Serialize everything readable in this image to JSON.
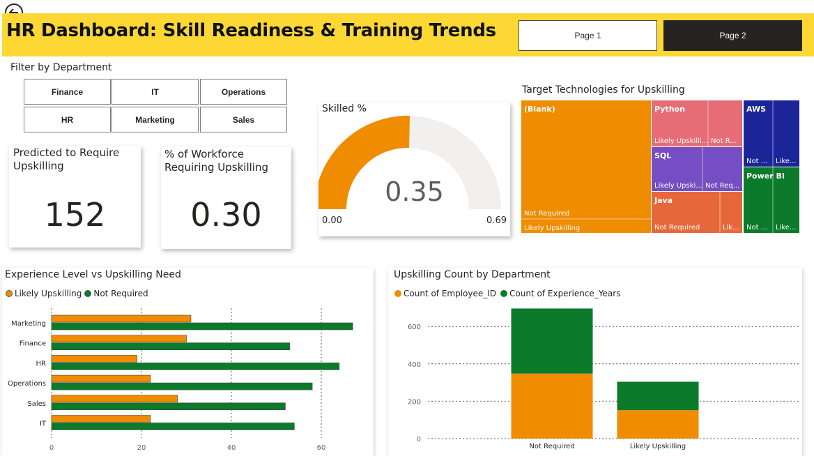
{
  "header": {
    "title": "HR Dashboard: Skill Readiness & Training Trends",
    "page_buttons": [
      "Page 1",
      "Page 2"
    ],
    "background": "#fdd835"
  },
  "filter": {
    "label": "Filter by Department",
    "options": [
      "Finance",
      "IT",
      "Operations",
      "HR",
      "Marketing",
      "Sales"
    ]
  },
  "cards": {
    "predicted": {
      "title": "Predicted to Require Upskilling",
      "value": "152"
    },
    "percent": {
      "title": "% of Workforce Requiring Upskilling",
      "value": "0.30"
    }
  },
  "gauge": {
    "title": "Skilled %",
    "value_label": "0.35",
    "min_label": "0.00",
    "max_label": "0.69",
    "value": 0.35,
    "min": 0,
    "max": 0.69,
    "fill_color": "#f08c00",
    "track_color": "#f1f0ef"
  },
  "treemap": {
    "title": "Target Technologies for Upskilling",
    "colors": {
      "blank": "#f08c00",
      "python": "#e66c75",
      "sql": "#744ec2",
      "java": "#e6683a",
      "aws": "#1c2598",
      "powerbi": "#0b7a2b"
    },
    "groups": [
      {
        "name": "(Blank)",
        "labels": [
          "Not Required",
          "Likely Upskilling"
        ]
      },
      {
        "name": "Python",
        "labels": [
          "Likely Upskilli...",
          "Not R..."
        ]
      },
      {
        "name": "SQL",
        "labels": [
          "Likely Upski...",
          "Not Req..."
        ]
      },
      {
        "name": "Java",
        "labels": [
          "Not Required",
          "Lik..."
        ]
      },
      {
        "name": "AWS",
        "labels": [
          "Not ...",
          "Like..."
        ]
      },
      {
        "name": "Power BI",
        "labels": [
          "Not ...",
          "Like..."
        ]
      }
    ]
  },
  "chart_data": [
    {
      "type": "bar",
      "orientation": "horizontal",
      "title": "Experience Level vs Upskilling Need",
      "categories": [
        "Marketing",
        "Finance",
        "HR",
        "Operations",
        "Sales",
        "IT"
      ],
      "series": [
        {
          "name": "Likely Upskilling",
          "color": "#f08c00",
          "values": [
            31,
            30,
            19,
            22,
            28,
            22
          ]
        },
        {
          "name": "Not Required",
          "color": "#0b7a2b",
          "values": [
            67,
            53,
            64,
            58,
            52,
            54
          ]
        }
      ],
      "xticks": [
        "0",
        "20",
        "40",
        "60"
      ],
      "xlim": [
        0,
        70
      ],
      "grid": true,
      "legend": "top-left"
    },
    {
      "type": "bar",
      "orientation": "vertical",
      "stacked": true,
      "title": "Upskilling Count by Department",
      "categories": [
        "Not Required",
        "Likely Upskilling"
      ],
      "series": [
        {
          "name": "Count of Employee_ID",
          "color": "#f08c00",
          "values": [
            348,
            152
          ]
        },
        {
          "name": "Count of Experience_Years",
          "color": "#0b7a2b",
          "values": [
            348,
            152
          ]
        }
      ],
      "yticks": [
        "0",
        "200",
        "400",
        "600"
      ],
      "ylim": [
        0,
        700
      ],
      "grid": true,
      "legend": "top-left"
    }
  ]
}
